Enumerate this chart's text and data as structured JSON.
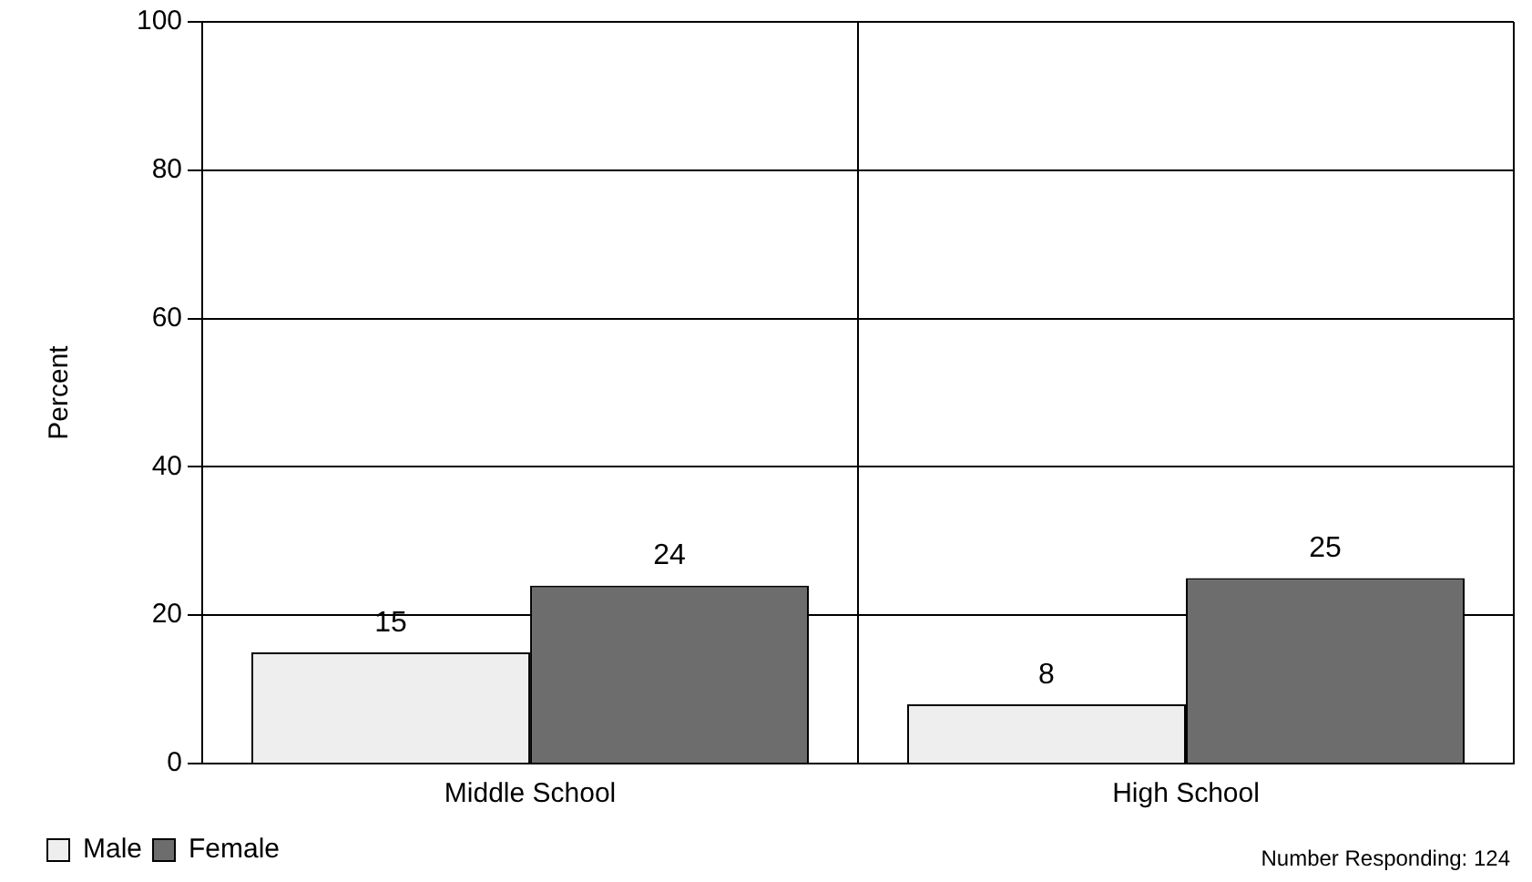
{
  "chart_data": {
    "type": "bar",
    "ylabel": "Percent",
    "categories": [
      "Middle School",
      "High School"
    ],
    "series": [
      {
        "name": "Male",
        "color": "#eeeeee",
        "values": [
          15,
          8
        ]
      },
      {
        "name": "Female",
        "color": "#6d6d6d",
        "values": [
          24,
          25
        ]
      }
    ],
    "ylim": [
      0,
      100
    ],
    "yticks": [
      0,
      20,
      40,
      60,
      80,
      100
    ],
    "grid": true,
    "legend": "bottom left",
    "data_labels": true,
    "annotations": [
      "Number Responding: 124"
    ]
  }
}
